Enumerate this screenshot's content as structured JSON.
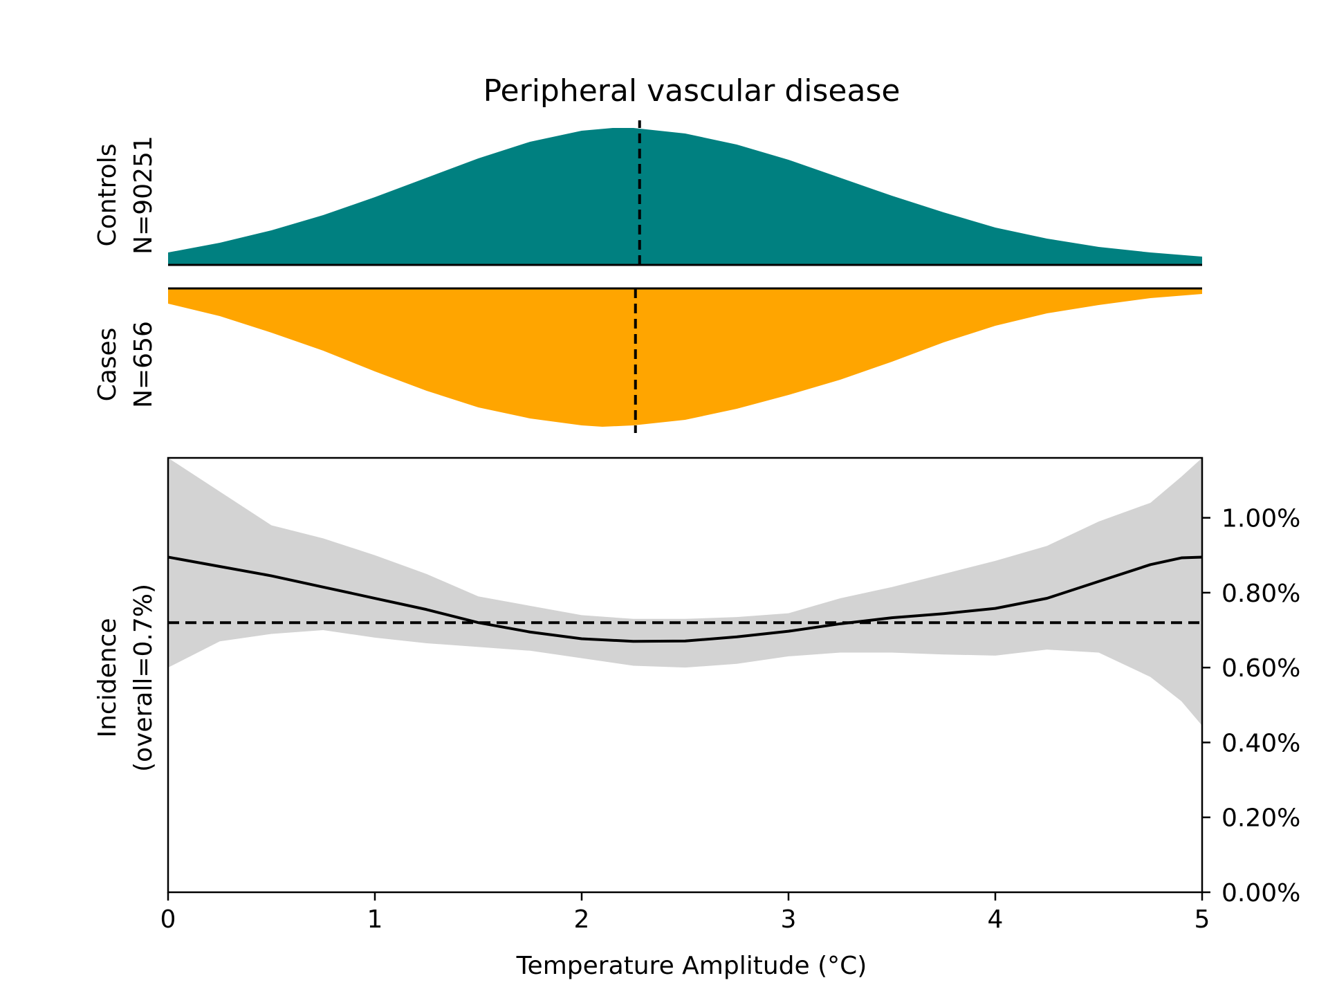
{
  "chart_data": {
    "type": "line",
    "title": "Peripheral vascular disease",
    "xlabel": "Temperature Amplitude (°C)",
    "xlim": [
      0,
      5
    ],
    "x_ticks": [
      "0",
      "1",
      "2",
      "3",
      "4",
      "5"
    ],
    "x_tick_values": [
      0,
      1,
      2,
      3,
      4,
      5
    ],
    "controls": {
      "label_line1": "Controls",
      "label_line2": "N=90251",
      "color": "#008080",
      "median": 2.28,
      "x": [
        0,
        0.25,
        0.5,
        0.75,
        1,
        1.25,
        1.5,
        1.75,
        2,
        2.15,
        2.25,
        2.5,
        2.75,
        3,
        3.25,
        3.5,
        3.75,
        4,
        4.25,
        4.5,
        4.75,
        5
      ],
      "density": [
        0.09,
        0.16,
        0.25,
        0.36,
        0.49,
        0.63,
        0.77,
        0.89,
        0.97,
        0.99,
        0.99,
        0.95,
        0.87,
        0.76,
        0.63,
        0.5,
        0.38,
        0.27,
        0.19,
        0.13,
        0.09,
        0.06
      ]
    },
    "cases": {
      "label_line1": "Cases",
      "label_line2": "N=656",
      "color": "#FFA500",
      "median": 2.26,
      "x": [
        0,
        0.25,
        0.5,
        0.75,
        1,
        1.25,
        1.5,
        1.75,
        2,
        2.1,
        2.25,
        2.5,
        2.75,
        3,
        3.25,
        3.5,
        3.75,
        4,
        4.25,
        4.5,
        4.75,
        5
      ],
      "density": [
        0.11,
        0.2,
        0.32,
        0.45,
        0.6,
        0.74,
        0.86,
        0.94,
        0.99,
        1.0,
        0.99,
        0.95,
        0.87,
        0.77,
        0.66,
        0.53,
        0.39,
        0.27,
        0.18,
        0.12,
        0.07,
        0.04
      ]
    },
    "incidence": {
      "ylabel_line1": "Incidence",
      "ylabel_line2": "(overall=0.7%)",
      "ylim": [
        0,
        1.16
      ],
      "y_ticks": [
        "0.00%",
        "0.20%",
        "0.40%",
        "0.60%",
        "0.80%",
        "1.00%"
      ],
      "y_tick_values": [
        0,
        0.2,
        0.4,
        0.6,
        0.8,
        1.0
      ],
      "overall": 0.72,
      "line_color": "#000000",
      "band_color": "#D3D3D3",
      "x": [
        0,
        0.25,
        0.5,
        0.75,
        1,
        1.25,
        1.5,
        1.75,
        2,
        2.25,
        2.5,
        2.75,
        3,
        3.25,
        3.5,
        3.75,
        4,
        4.25,
        4.5,
        4.75,
        4.9,
        5
      ],
      "y": [
        0.895,
        0.87,
        0.845,
        0.815,
        0.785,
        0.755,
        0.72,
        0.695,
        0.677,
        0.67,
        0.671,
        0.682,
        0.697,
        0.717,
        0.733,
        0.744,
        0.758,
        0.785,
        0.83,
        0.875,
        0.893,
        0.895
      ],
      "lower": [
        0.6,
        0.67,
        0.69,
        0.7,
        0.68,
        0.665,
        0.655,
        0.645,
        0.625,
        0.605,
        0.6,
        0.61,
        0.63,
        0.64,
        0.64,
        0.635,
        0.632,
        0.648,
        0.64,
        0.575,
        0.51,
        0.445
      ],
      "upper": [
        1.16,
        1.07,
        0.98,
        0.945,
        0.9,
        0.85,
        0.79,
        0.765,
        0.74,
        0.73,
        0.73,
        0.735,
        0.745,
        0.785,
        0.815,
        0.85,
        0.885,
        0.925,
        0.99,
        1.04,
        1.11,
        1.16
      ]
    }
  }
}
